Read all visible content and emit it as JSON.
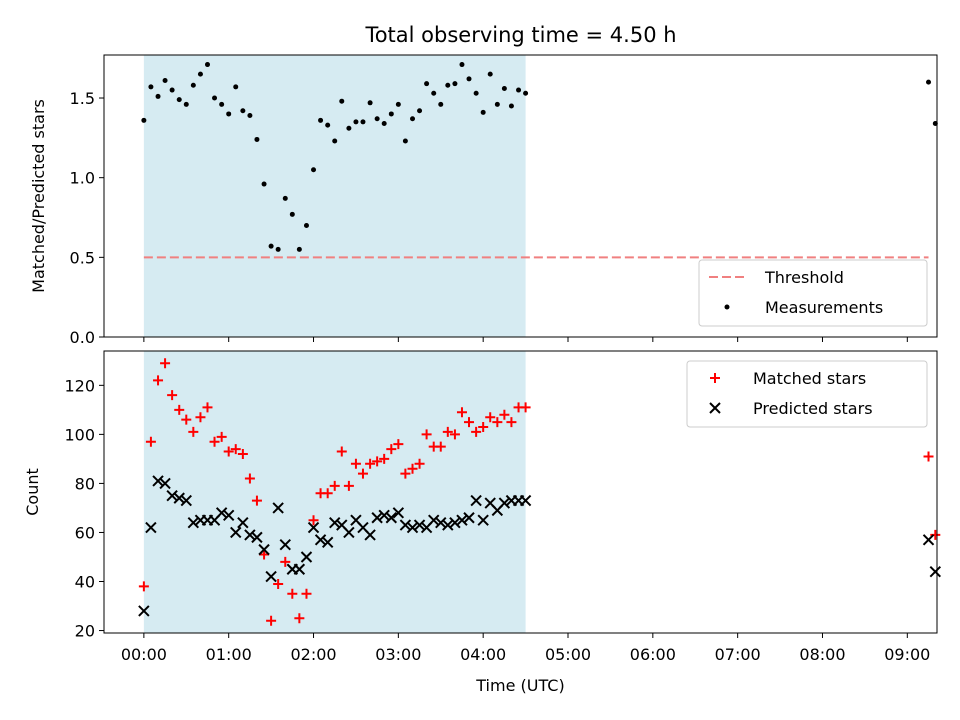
{
  "figure": {
    "title": "Total observing time = 4.50 h"
  },
  "colors": {
    "shade": "#add8e6",
    "threshold": "#f08080",
    "matched": "#ff0000",
    "predicted": "#000000",
    "measurement": "#000000"
  },
  "chart_data": [
    {
      "type": "scatter",
      "title": "Total observing time = 4.50 h",
      "ylabel": "Matched/Predicted stars",
      "xlabel": "",
      "xlim": [
        -0.47,
        9.35
      ],
      "ylim": [
        0.0,
        1.77
      ],
      "yticks": [
        0.0,
        0.5,
        1.0,
        1.5
      ],
      "ytick_labels": [
        "0.0",
        "0.5",
        "1.0",
        "1.5"
      ],
      "shaded_x_range": [
        0.0,
        4.5
      ],
      "threshold": {
        "name": "Threshold",
        "value": 0.5,
        "x_range": [
          0.0,
          9.25
        ],
        "style": "dashed"
      },
      "legend": {
        "position": "lower-right",
        "entries": [
          "Threshold",
          "Measurements"
        ]
      },
      "series": [
        {
          "name": "Measurements",
          "marker": "dot",
          "x": [
            0.0,
            0.083,
            0.167,
            0.25,
            0.333,
            0.417,
            0.5,
            0.583,
            0.667,
            0.75,
            0.833,
            0.917,
            1.0,
            1.083,
            1.167,
            1.25,
            1.333,
            1.417,
            1.5,
            1.583,
            1.667,
            1.75,
            1.833,
            1.917,
            2.0,
            2.083,
            2.167,
            2.25,
            2.333,
            2.417,
            2.5,
            2.583,
            2.667,
            2.75,
            2.833,
            2.917,
            3.0,
            3.083,
            3.167,
            3.25,
            3.333,
            3.417,
            3.5,
            3.583,
            3.667,
            3.75,
            3.833,
            3.917,
            4.0,
            4.083,
            4.167,
            4.25,
            4.333,
            4.417,
            4.5,
            9.25,
            9.33
          ],
          "y": [
            1.36,
            1.57,
            1.51,
            1.61,
            1.55,
            1.49,
            1.46,
            1.58,
            1.65,
            1.71,
            1.5,
            1.46,
            1.4,
            1.57,
            1.42,
            1.39,
            1.24,
            0.96,
            0.57,
            0.55,
            0.87,
            0.77,
            0.55,
            0.7,
            1.05,
            1.36,
            1.33,
            1.23,
            1.48,
            1.31,
            1.35,
            1.35,
            1.47,
            1.37,
            1.34,
            1.4,
            1.46,
            1.23,
            1.37,
            1.42,
            1.59,
            1.53,
            1.46,
            1.58,
            1.59,
            1.71,
            1.62,
            1.53,
            1.41,
            1.65,
            1.46,
            1.56,
            1.45,
            1.55,
            1.53,
            1.6,
            1.34
          ]
        }
      ]
    },
    {
      "type": "scatter",
      "ylabel": "Count",
      "xlabel": "Time (UTC)",
      "xlim": [
        -0.47,
        9.35
      ],
      "ylim": [
        19,
        134
      ],
      "yticks": [
        20,
        40,
        60,
        80,
        100,
        120
      ],
      "ytick_labels": [
        "20",
        "40",
        "60",
        "80",
        "100",
        "120"
      ],
      "xticks": [
        0,
        1,
        2,
        3,
        4,
        5,
        6,
        7,
        8,
        9
      ],
      "xtick_labels": [
        "00:00",
        "01:00",
        "02:00",
        "03:00",
        "04:00",
        "05:00",
        "06:00",
        "07:00",
        "08:00",
        "09:00"
      ],
      "shaded_x_range": [
        0.0,
        4.5
      ],
      "legend": {
        "position": "upper-right",
        "entries": [
          "Matched stars",
          "Predicted stars"
        ]
      },
      "series": [
        {
          "name": "Matched stars",
          "marker": "plus",
          "x": [
            0.0,
            0.083,
            0.167,
            0.25,
            0.333,
            0.417,
            0.5,
            0.583,
            0.667,
            0.75,
            0.833,
            0.917,
            1.0,
            1.083,
            1.167,
            1.25,
            1.333,
            1.417,
            1.5,
            1.583,
            1.667,
            1.75,
            1.833,
            1.917,
            2.0,
            2.083,
            2.167,
            2.25,
            2.333,
            2.417,
            2.5,
            2.583,
            2.667,
            2.75,
            2.833,
            2.917,
            3.0,
            3.083,
            3.167,
            3.25,
            3.333,
            3.417,
            3.5,
            3.583,
            3.667,
            3.75,
            3.833,
            3.917,
            4.0,
            4.083,
            4.167,
            4.25,
            4.333,
            4.417,
            4.5,
            9.25,
            9.33
          ],
          "y": [
            38,
            97,
            122,
            129,
            116,
            110,
            106,
            101,
            107,
            111,
            97,
            99,
            93,
            94,
            92,
            82,
            73,
            51,
            24,
            39,
            48,
            35,
            25,
            35,
            65,
            76,
            76,
            79,
            93,
            79,
            88,
            84,
            88,
            89,
            90,
            94,
            96,
            84,
            86,
            88,
            100,
            95,
            95,
            101,
            100,
            109,
            105,
            101,
            103,
            107,
            105,
            108,
            105,
            111,
            111,
            91,
            59
          ]
        },
        {
          "name": "Predicted stars",
          "marker": "cross",
          "x": [
            0.0,
            0.083,
            0.167,
            0.25,
            0.333,
            0.417,
            0.5,
            0.583,
            0.667,
            0.75,
            0.833,
            0.917,
            1.0,
            1.083,
            1.167,
            1.25,
            1.333,
            1.417,
            1.5,
            1.583,
            1.667,
            1.75,
            1.833,
            1.917,
            2.0,
            2.083,
            2.167,
            2.25,
            2.333,
            2.417,
            2.5,
            2.583,
            2.667,
            2.75,
            2.833,
            2.917,
            3.0,
            3.083,
            3.167,
            3.25,
            3.333,
            3.417,
            3.5,
            3.583,
            3.667,
            3.75,
            3.833,
            3.917,
            4.0,
            4.083,
            4.167,
            4.25,
            4.333,
            4.417,
            4.5,
            9.25,
            9.33
          ],
          "y": [
            28,
            62,
            81,
            80,
            75,
            74,
            73,
            64,
            65,
            65,
            65,
            68,
            67,
            60,
            64,
            59,
            58,
            53,
            42,
            70,
            55,
            45,
            45,
            50,
            62,
            57,
            56,
            64,
            63,
            60,
            65,
            62,
            59,
            66,
            67,
            66,
            68,
            63,
            62,
            63,
            62,
            65,
            64,
            63,
            64,
            65,
            66,
            73,
            65,
            72,
            69,
            72,
            73,
            73,
            73,
            57,
            44
          ]
        }
      ]
    }
  ]
}
